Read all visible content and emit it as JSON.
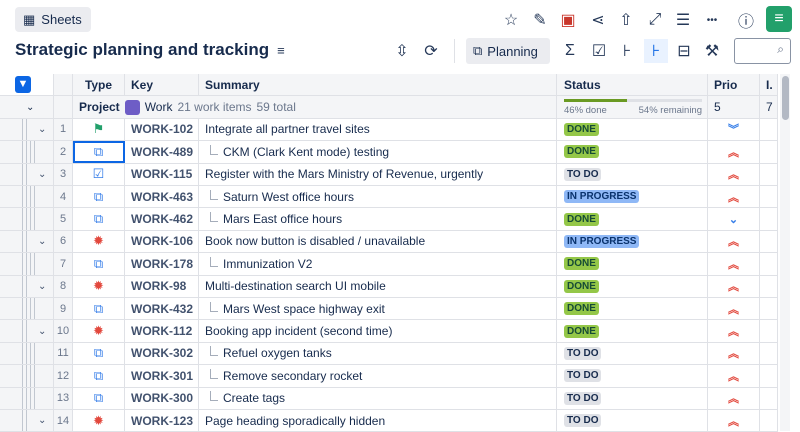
{
  "toolbar": {
    "sheets_label": "Sheets",
    "planning_label": "Planning",
    "search_placeholder": ""
  },
  "page_title": "Strategic planning and tracking",
  "columns": [
    "Type",
    "Key",
    "Summary",
    "Status",
    "Prio",
    "I."
  ],
  "project": {
    "label": "Project",
    "name": "Work",
    "items": "21 work items",
    "total": "59 total",
    "done": "46% done",
    "remaining": "54% remaining",
    "done_fraction": 0.46,
    "prio": "5",
    "i": "7"
  },
  "colors": {
    "done": "#94c748",
    "todo": "#dfe1e6",
    "inprogress": "#8fb8f6",
    "high": "#e2483d",
    "low": "#357de8",
    "accent": "#0c66e4"
  },
  "rows": [
    {
      "n": "1",
      "type": "story",
      "key": "WORK-102",
      "summary": "Integrate all partner travel sites",
      "status": "DONE",
      "prio": "lowest",
      "child": false,
      "exp": true
    },
    {
      "n": "2",
      "type": "subtask",
      "key": "WORK-489",
      "summary": "CKM (Clark Kent mode) testing",
      "status": "DONE",
      "prio": "highest",
      "child": true
    },
    {
      "n": "3",
      "type": "task",
      "key": "WORK-115",
      "summary": "Register with the Mars Ministry of Revenue, urgently",
      "status": "TO DO",
      "prio": "highest",
      "child": false,
      "exp": true
    },
    {
      "n": "4",
      "type": "subtask",
      "key": "WORK-463",
      "summary": "Saturn West office hours",
      "status": "IN PROGRESS",
      "prio": "highest",
      "child": true
    },
    {
      "n": "5",
      "type": "subtask",
      "key": "WORK-462",
      "summary": "Mars East office hours",
      "status": "DONE",
      "prio": "low",
      "child": true
    },
    {
      "n": "6",
      "type": "bug",
      "key": "WORK-106",
      "summary": "Book now button is disabled / unavailable",
      "status": "IN PROGRESS",
      "prio": "highest",
      "child": false,
      "exp": true
    },
    {
      "n": "7",
      "type": "subtask",
      "key": "WORK-178",
      "summary": "Immunization V2",
      "status": "DONE",
      "prio": "highest",
      "child": true
    },
    {
      "n": "8",
      "type": "bug",
      "key": "WORK-98",
      "summary": "Multi-destination search UI mobile",
      "status": "DONE",
      "prio": "highest",
      "child": false,
      "exp": true
    },
    {
      "n": "9",
      "type": "subtask",
      "key": "WORK-432",
      "summary": "Mars West space highway exit",
      "status": "DONE",
      "prio": "highest",
      "child": true
    },
    {
      "n": "10",
      "type": "bug",
      "key": "WORK-112",
      "summary": "Booking app incident (second time)",
      "status": "DONE",
      "prio": "highest",
      "child": false,
      "exp": true
    },
    {
      "n": "11",
      "type": "subtask",
      "key": "WORK-302",
      "summary": "Refuel oxygen tanks",
      "status": "TO DO",
      "prio": "highest",
      "child": true
    },
    {
      "n": "12",
      "type": "subtask",
      "key": "WORK-301",
      "summary": "Remove secondary rocket",
      "status": "TO DO",
      "prio": "highest",
      "child": true
    },
    {
      "n": "13",
      "type": "subtask",
      "key": "WORK-300",
      "summary": "Create tags",
      "status": "TO DO",
      "prio": "highest",
      "child": true
    },
    {
      "n": "14",
      "type": "bug",
      "key": "WORK-123",
      "summary": "Page heading sporadically hidden",
      "status": "TO DO",
      "prio": "highest",
      "child": false,
      "exp": true
    }
  ]
}
